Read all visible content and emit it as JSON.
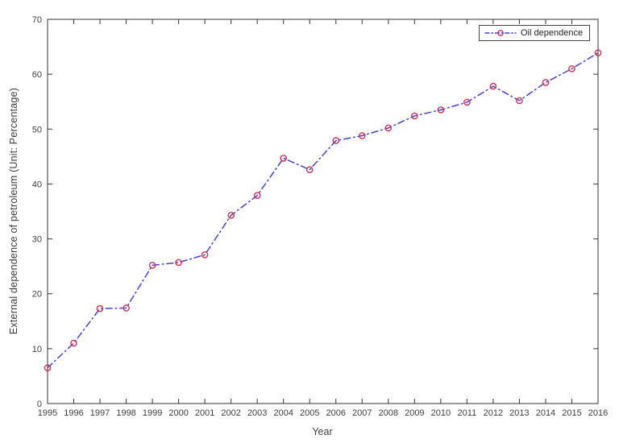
{
  "chart_data": {
    "type": "line",
    "title": "",
    "xlabel": "Year",
    "ylabel": "External dependence of petroleum (Unit: Percentage)",
    "x": [
      1995,
      1996,
      1997,
      1998,
      1999,
      2000,
      2001,
      2002,
      2003,
      2004,
      2005,
      2006,
      2007,
      2008,
      2009,
      2010,
      2011,
      2012,
      2013,
      2014,
      2015,
      2016
    ],
    "series": [
      {
        "name": "Oil dependence",
        "values": [
          6.5,
          11.0,
          17.3,
          17.4,
          25.2,
          25.7,
          27.1,
          34.3,
          37.9,
          44.7,
          42.6,
          47.9,
          48.8,
          50.2,
          52.4,
          53.5,
          54.9,
          57.8,
          55.2,
          58.5,
          61.0,
          63.9
        ],
        "line_color": "#4444cc",
        "line_style": "dash-dot",
        "marker": "circle",
        "marker_color": "#cf3256"
      }
    ],
    "xlim": [
      1995,
      2016
    ],
    "ylim": [
      0,
      70
    ],
    "yticks": [
      0,
      10,
      20,
      30,
      40,
      50,
      60,
      70
    ],
    "grid": false,
    "legend": {
      "label": "Oil dependence",
      "position": "top-right"
    },
    "axis_color": "#333333",
    "axis_text_color": "#3c3c3c"
  }
}
